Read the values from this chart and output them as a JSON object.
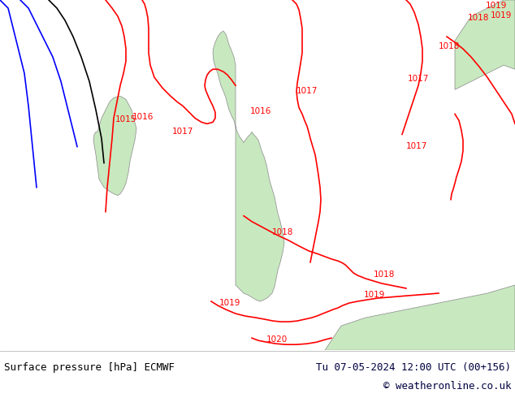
{
  "title_left": "Surface pressure [hPa] ECMWF",
  "title_right": "Tu 07-05-2024 12:00 UTC (00+156)",
  "copyright": "© weatheronline.co.uk",
  "bg_color": "#d8d8d8",
  "land_color": "#c8e8c0",
  "sea_color": "#d8d8d8",
  "contour_color_red": "#ff0000",
  "contour_color_blue": "#0000ff",
  "contour_color_black": "#000000",
  "footer_bg": "#f0f0f0",
  "footer_text_color": "#000000",
  "footer_right_color": "#000040",
  "figsize": [
    6.34,
    4.9
  ],
  "dpi": 100
}
